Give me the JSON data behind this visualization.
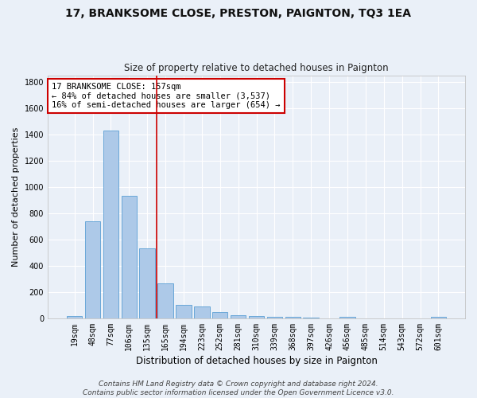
{
  "title": "17, BRANKSOME CLOSE, PRESTON, PAIGNTON, TQ3 1EA",
  "subtitle": "Size of property relative to detached houses in Paignton",
  "xlabel": "Distribution of detached houses by size in Paignton",
  "ylabel": "Number of detached properties",
  "categories": [
    "19sqm",
    "48sqm",
    "77sqm",
    "106sqm",
    "135sqm",
    "165sqm",
    "194sqm",
    "223sqm",
    "252sqm",
    "281sqm",
    "310sqm",
    "339sqm",
    "368sqm",
    "397sqm",
    "426sqm",
    "456sqm",
    "485sqm",
    "514sqm",
    "543sqm",
    "572sqm",
    "601sqm"
  ],
  "values": [
    20,
    740,
    1430,
    935,
    535,
    265,
    103,
    88,
    46,
    25,
    20,
    10,
    12,
    5,
    2,
    10,
    0,
    0,
    0,
    0,
    12
  ],
  "bar_color": "#adc9e8",
  "bar_edge_color": "#5a9fd4",
  "background_color": "#eaf0f8",
  "grid_color": "#ffffff",
  "vline_x_index": 4.5,
  "vline_color": "#cc0000",
  "annotation_line1": "17 BRANKSOME CLOSE: 157sqm",
  "annotation_line2": "← 84% of detached houses are smaller (3,537)",
  "annotation_line3": "16% of semi-detached houses are larger (654) →",
  "annotation_box_color": "#ffffff",
  "annotation_box_edge_color": "#cc0000",
  "footer_line1": "Contains HM Land Registry data © Crown copyright and database right 2024.",
  "footer_line2": "Contains public sector information licensed under the Open Government Licence v3.0.",
  "ylim": [
    0,
    1850
  ],
  "yticks": [
    0,
    200,
    400,
    600,
    800,
    1000,
    1200,
    1400,
    1600,
    1800
  ],
  "title_fontsize": 10,
  "subtitle_fontsize": 8.5,
  "xlabel_fontsize": 8.5,
  "ylabel_fontsize": 8,
  "tick_fontsize": 7,
  "footer_fontsize": 6.5,
  "annotation_fontsize": 7.5
}
